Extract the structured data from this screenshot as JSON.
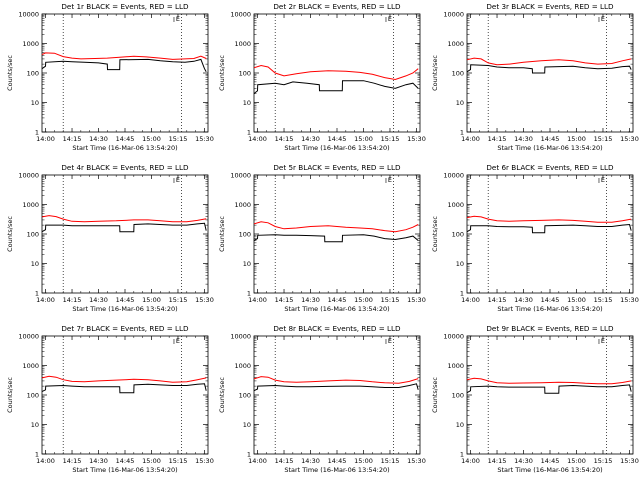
{
  "figure": {
    "time_labels": [
      "14:00",
      "14:15",
      "14:30",
      "14:45",
      "15:00",
      "15:15",
      "15:30"
    ],
    "y_tick_labels": [
      "1",
      "10",
      "100",
      "1000",
      "10000"
    ],
    "xlabel": "Start Time (16-Mar-06 13:54:20)",
    "ylabel": "Counts/sec",
    "marker_label": "E",
    "colors": {
      "events": "#000000",
      "lld": "#ff0000",
      "axis": "#000000",
      "background": "#ffffff"
    }
  },
  "chart_data": [
    {
      "type": "line",
      "title": "Det 1r BLACK = Events, RED = LLD",
      "xlabel": "Start Time (16-Mar-06 13:54:20)",
      "ylabel": "Counts/sec",
      "x_unit": "minutes after 14:00",
      "y_scale": "log",
      "ylim": [
        1,
        10000
      ],
      "xlim": [
        -2,
        92
      ],
      "vlines": [
        10,
        77
      ],
      "marker_x": 75,
      "series": [
        {
          "name": "LLD",
          "x": [
            -2,
            0,
            5,
            10,
            15,
            20,
            28,
            35,
            42,
            50,
            57,
            65,
            72,
            79,
            84,
            88,
            91
          ],
          "y": [
            420,
            480,
            470,
            360,
            320,
            300,
            310,
            320,
            340,
            370,
            350,
            320,
            290,
            300,
            310,
            370,
            310
          ]
        },
        {
          "name": "Events",
          "x": [
            -2,
            0,
            0.1,
            10,
            15,
            22,
            30,
            35,
            35.1,
            42,
            42.1,
            58,
            65,
            72,
            79,
            84,
            88,
            90,
            91
          ],
          "y": [
            140,
            170,
            230,
            250,
            240,
            230,
            220,
            200,
            130,
            130,
            280,
            290,
            260,
            240,
            230,
            250,
            290,
            140,
            110
          ]
        }
      ]
    },
    {
      "type": "line",
      "title": "Det 2r BLACK = Events, RED = LLD",
      "xlabel": "Start Time (16-Mar-06 13:54:20)",
      "ylabel": "Counts/sec",
      "x_unit": "minutes after 14:00",
      "y_scale": "log",
      "ylim": [
        1,
        10000
      ],
      "xlim": [
        -2,
        92
      ],
      "vlines": [
        10,
        77
      ],
      "marker_x": 75,
      "series": [
        {
          "name": "LLD",
          "x": [
            -2,
            2,
            6,
            10,
            15,
            22,
            30,
            40,
            50,
            58,
            65,
            72,
            78,
            84,
            88,
            91
          ],
          "y": [
            150,
            180,
            160,
            100,
            80,
            95,
            110,
            120,
            115,
            105,
            90,
            70,
            60,
            80,
            100,
            140
          ]
        },
        {
          "name": "Events",
          "x": [
            -2,
            0,
            0.1,
            10,
            15,
            20,
            28,
            35,
            35.1,
            48,
            48.1,
            60,
            66,
            72,
            78,
            84,
            88,
            91
          ],
          "y": [
            20,
            25,
            40,
            45,
            40,
            50,
            45,
            40,
            25,
            25,
            55,
            55,
            45,
            35,
            30,
            40,
            45,
            30
          ]
        }
      ]
    },
    {
      "type": "line",
      "title": "Det 3r BLACK = Events, RED = LLD",
      "xlabel": "Start Time (16-Mar-06 13:54:20)",
      "ylabel": "Counts/sec",
      "x_unit": "minutes after 14:00",
      "y_scale": "log",
      "ylim": [
        1,
        10000
      ],
      "xlim": [
        -2,
        92
      ],
      "vlines": [
        10,
        77
      ],
      "marker_x": 75,
      "series": [
        {
          "name": "LLD",
          "x": [
            -2,
            2,
            6,
            10,
            15,
            22,
            30,
            40,
            50,
            58,
            65,
            72,
            80,
            86,
            91
          ],
          "y": [
            280,
            320,
            300,
            220,
            190,
            200,
            230,
            260,
            280,
            260,
            220,
            200,
            210,
            260,
            300
          ]
        },
        {
          "name": "Events",
          "x": [
            -2,
            0,
            0.1,
            10,
            15,
            22,
            30,
            35,
            35.1,
            42,
            42.1,
            58,
            65,
            72,
            80,
            86,
            90,
            91
          ],
          "y": [
            110,
            130,
            190,
            180,
            160,
            150,
            150,
            140,
            100,
            100,
            160,
            170,
            150,
            140,
            145,
            165,
            170,
            130
          ]
        }
      ]
    },
    {
      "type": "line",
      "title": "Det 4r BLACK = Events, RED = LLD",
      "xlabel": "Start Time (16-Mar-06 13:54:20)",
      "ylabel": "Counts/sec",
      "x_unit": "minutes after 14:00",
      "y_scale": "log",
      "ylim": [
        1,
        10000
      ],
      "xlim": [
        -2,
        92
      ],
      "vlines": [
        10,
        77
      ],
      "marker_x": 75,
      "series": [
        {
          "name": "LLD",
          "x": [
            -2,
            2,
            6,
            10,
            15,
            22,
            30,
            40,
            50,
            58,
            65,
            72,
            80,
            86,
            91
          ],
          "y": [
            380,
            420,
            390,
            320,
            270,
            260,
            270,
            280,
            300,
            300,
            280,
            260,
            260,
            290,
            330
          ]
        },
        {
          "name": "Events",
          "x": [
            -2,
            0,
            0.1,
            10,
            15,
            22,
            30,
            42,
            42.1,
            50,
            50.1,
            58,
            65,
            72,
            80,
            86,
            90,
            91
          ],
          "y": [
            120,
            140,
            200,
            200,
            190,
            190,
            190,
            190,
            120,
            120,
            210,
            220,
            210,
            200,
            200,
            220,
            230,
            130
          ]
        }
      ]
    },
    {
      "type": "line",
      "title": "Det 5r BLACK = Events, RED = LLD",
      "xlabel": "Start Time (16-Mar-06 13:54:20)",
      "ylabel": "Counts/sec",
      "x_unit": "minutes after 14:00",
      "y_scale": "log",
      "ylim": [
        1,
        10000
      ],
      "xlim": [
        -2,
        92
      ],
      "vlines": [
        10,
        77
      ],
      "marker_x": 75,
      "series": [
        {
          "name": "LLD",
          "x": [
            -2,
            2,
            6,
            10,
            15,
            22,
            30,
            40,
            50,
            58,
            65,
            72,
            78,
            84,
            88,
            91
          ],
          "y": [
            220,
            260,
            240,
            180,
            150,
            160,
            180,
            190,
            170,
            160,
            150,
            130,
            120,
            140,
            170,
            210
          ]
        },
        {
          "name": "Events",
          "x": [
            -2,
            0,
            0.1,
            10,
            15,
            22,
            30,
            38,
            38.1,
            48,
            48.1,
            60,
            66,
            72,
            78,
            84,
            88,
            91
          ],
          "y": [
            60,
            70,
            90,
            95,
            90,
            90,
            88,
            85,
            55,
            55,
            90,
            95,
            85,
            70,
            65,
            75,
            85,
            60
          ]
        }
      ]
    },
    {
      "type": "line",
      "title": "Det 6r BLACK = Events, RED = LLD",
      "xlabel": "Start Time (16-Mar-06 13:54:20)",
      "ylabel": "Counts/sec",
      "x_unit": "minutes after 14:00",
      "y_scale": "log",
      "ylim": [
        1,
        10000
      ],
      "xlim": [
        -2,
        92
      ],
      "vlines": [
        10,
        77
      ],
      "marker_x": 75,
      "series": [
        {
          "name": "LLD",
          "x": [
            -2,
            2,
            6,
            10,
            15,
            22,
            30,
            40,
            50,
            58,
            65,
            72,
            80,
            86,
            91
          ],
          "y": [
            360,
            400,
            380,
            320,
            280,
            270,
            280,
            290,
            300,
            290,
            270,
            250,
            250,
            280,
            320
          ]
        },
        {
          "name": "Events",
          "x": [
            -2,
            0,
            0.1,
            10,
            15,
            22,
            30,
            35,
            35.1,
            42,
            42.1,
            58,
            65,
            72,
            80,
            86,
            90,
            91
          ],
          "y": [
            120,
            140,
            190,
            190,
            180,
            175,
            175,
            170,
            110,
            110,
            190,
            200,
            190,
            180,
            180,
            200,
            210,
            130
          ]
        }
      ]
    },
    {
      "type": "line",
      "title": "Det 7r BLACK = Events, RED = LLD",
      "xlabel": "Start Time (16-Mar-06 13:54:20)",
      "ylabel": "Counts/sec",
      "x_unit": "minutes after 14:00",
      "y_scale": "log",
      "ylim": [
        1,
        10000
      ],
      "xlim": [
        -2,
        92
      ],
      "vlines": [
        10,
        77
      ],
      "marker_x": 75,
      "series": [
        {
          "name": "LLD",
          "x": [
            -2,
            2,
            6,
            10,
            15,
            22,
            30,
            40,
            50,
            58,
            65,
            72,
            80,
            86,
            91
          ],
          "y": [
            380,
            430,
            400,
            330,
            290,
            280,
            300,
            320,
            340,
            330,
            300,
            270,
            280,
            330,
            380
          ]
        },
        {
          "name": "Events",
          "x": [
            -2,
            0,
            0.1,
            10,
            15,
            22,
            30,
            42,
            42.1,
            50,
            50.1,
            58,
            65,
            72,
            80,
            86,
            90,
            91
          ],
          "y": [
            130,
            150,
            200,
            210,
            200,
            190,
            190,
            190,
            120,
            120,
            220,
            230,
            220,
            210,
            210,
            230,
            240,
            140
          ]
        }
      ]
    },
    {
      "type": "line",
      "title": "Det 8r BLACK = Events, RED = LLD",
      "xlabel": "Start Time (16-Mar-06 13:54:20)",
      "ylabel": "Counts/sec",
      "x_unit": "minutes after 14:00",
      "y_scale": "log",
      "ylim": [
        1,
        10000
      ],
      "xlim": [
        -2,
        92
      ],
      "vlines": [
        10,
        77
      ],
      "marker_x": 75,
      "series": [
        {
          "name": "LLD",
          "x": [
            -2,
            2,
            6,
            10,
            15,
            22,
            30,
            40,
            50,
            58,
            65,
            72,
            80,
            86,
            91
          ],
          "y": [
            350,
            420,
            400,
            320,
            280,
            270,
            280,
            300,
            320,
            310,
            280,
            260,
            250,
            290,
            360
          ]
        },
        {
          "name": "Events",
          "x": [
            -2,
            0,
            0.1,
            10,
            15,
            22,
            30,
            40,
            50,
            58,
            65,
            72,
            80,
            86,
            90,
            91
          ],
          "y": [
            140,
            160,
            200,
            210,
            200,
            190,
            190,
            195,
            200,
            200,
            190,
            180,
            180,
            210,
            240,
            150
          ]
        }
      ]
    },
    {
      "type": "line",
      "title": "Det 9r BLACK = Events, RED = LLD",
      "xlabel": "Start Time (16-Mar-06 13:54:20)",
      "ylabel": "Counts/sec",
      "x_unit": "minutes after 14:00",
      "y_scale": "log",
      "ylim": [
        1,
        10000
      ],
      "xlim": [
        -2,
        92
      ],
      "vlines": [
        10,
        77
      ],
      "marker_x": 75,
      "series": [
        {
          "name": "LLD",
          "x": [
            -2,
            2,
            6,
            10,
            15,
            22,
            30,
            40,
            50,
            58,
            65,
            72,
            80,
            86,
            91
          ],
          "y": [
            330,
            370,
            350,
            300,
            260,
            250,
            255,
            260,
            270,
            265,
            250,
            240,
            240,
            265,
            300
          ]
        },
        {
          "name": "Events",
          "x": [
            -2,
            0,
            0.1,
            10,
            15,
            22,
            30,
            42,
            42.1,
            50,
            50.1,
            58,
            65,
            72,
            80,
            86,
            90,
            91
          ],
          "y": [
            120,
            140,
            190,
            200,
            190,
            185,
            185,
            185,
            115,
            115,
            200,
            210,
            200,
            190,
            190,
            210,
            220,
            130
          ]
        }
      ]
    }
  ]
}
